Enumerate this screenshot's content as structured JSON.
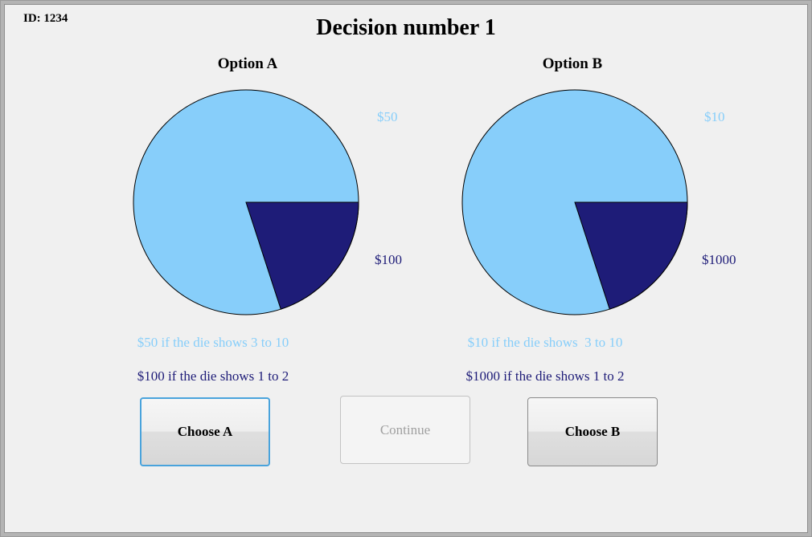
{
  "window": {
    "id_label": "ID: 1234",
    "title": "Decision number 1"
  },
  "options": [
    {
      "name": "Option A",
      "high": {
        "label": "$50",
        "text": "$50 if the die shows 3 to 10"
      },
      "low": {
        "label": "$100",
        "text": "$100 if the die shows 1 to 2"
      },
      "button_label": "Choose A"
    },
    {
      "name": "Option B",
      "high": {
        "label": "$10",
        "text": "$10 if the die shows  3 to 10"
      },
      "low": {
        "label": "$1000",
        "text": "$1000 if the die shows 1 to 2"
      },
      "button_label": "Choose B"
    }
  ],
  "continue_button_label": "Continue",
  "colors": {
    "high_outcome": "#87CEFA",
    "low_outcome": "#1E1C78",
    "pie_outline": "#000000"
  },
  "chart_data": [
    {
      "type": "pie",
      "title": "Option A",
      "labels": [
        "$50",
        "$100"
      ],
      "values": [
        80,
        20
      ],
      "colors": [
        "#87CEFA",
        "#1E1C78"
      ],
      "annotations": [
        "$50 if the die shows 3 to 10",
        "$100 if the die shows 1 to 2"
      ],
      "start_angle_deg": 0,
      "direction": "clockwise-from-3-oclock",
      "legend_position": "right-of-pie"
    },
    {
      "type": "pie",
      "title": "Option B",
      "labels": [
        "$10",
        "$1000"
      ],
      "values": [
        80,
        20
      ],
      "colors": [
        "#87CEFA",
        "#1E1C78"
      ],
      "annotations": [
        "$10 if the die shows  3 to 10",
        "$1000 if the die shows 1 to 2"
      ],
      "start_angle_deg": 0,
      "direction": "clockwise-from-3-oclock",
      "legend_position": "right-of-pie"
    }
  ]
}
